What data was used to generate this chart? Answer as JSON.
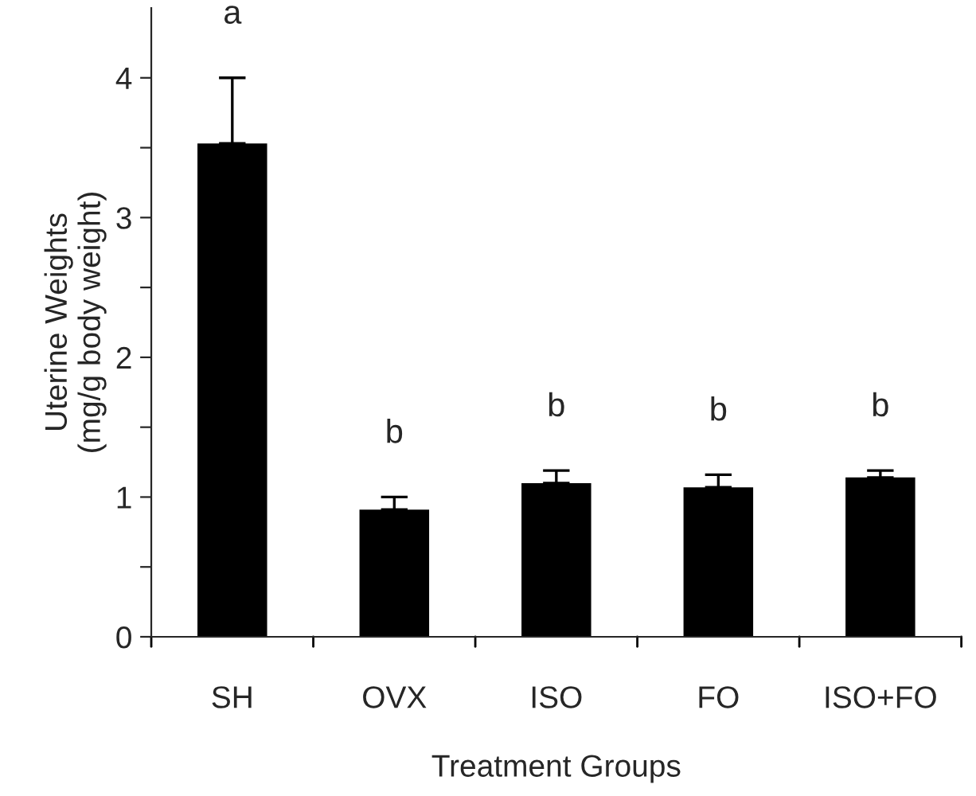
{
  "chart_data": {
    "type": "bar",
    "xlabel": "Treatment Groups",
    "ylabel": "Uterine Weights\n(mg/g body weight)",
    "categories": [
      "SH",
      "OVX",
      "ISO",
      "FO",
      "ISO+FO"
    ],
    "values": [
      3.53,
      0.91,
      1.1,
      1.07,
      1.14
    ],
    "errors": [
      [
        3.53,
        4.0
      ],
      [
        0.91,
        1.0
      ],
      [
        1.1,
        1.19
      ],
      [
        1.07,
        1.16
      ],
      [
        1.14,
        1.19
      ]
    ],
    "color": "#000000",
    "ylim": [
      0,
      4.5
    ],
    "yticks": [
      0,
      {
        "value": 0.5,
        "label": null
      },
      1,
      {
        "value": 1.5,
        "label": null
      },
      2,
      {
        "value": 2.5,
        "label": null
      },
      3,
      {
        "value": 3.5,
        "label": null
      },
      4
    ],
    "annotations": [
      "a",
      "b",
      "b",
      "b",
      "b"
    ],
    "grid": false,
    "legend": false
  }
}
